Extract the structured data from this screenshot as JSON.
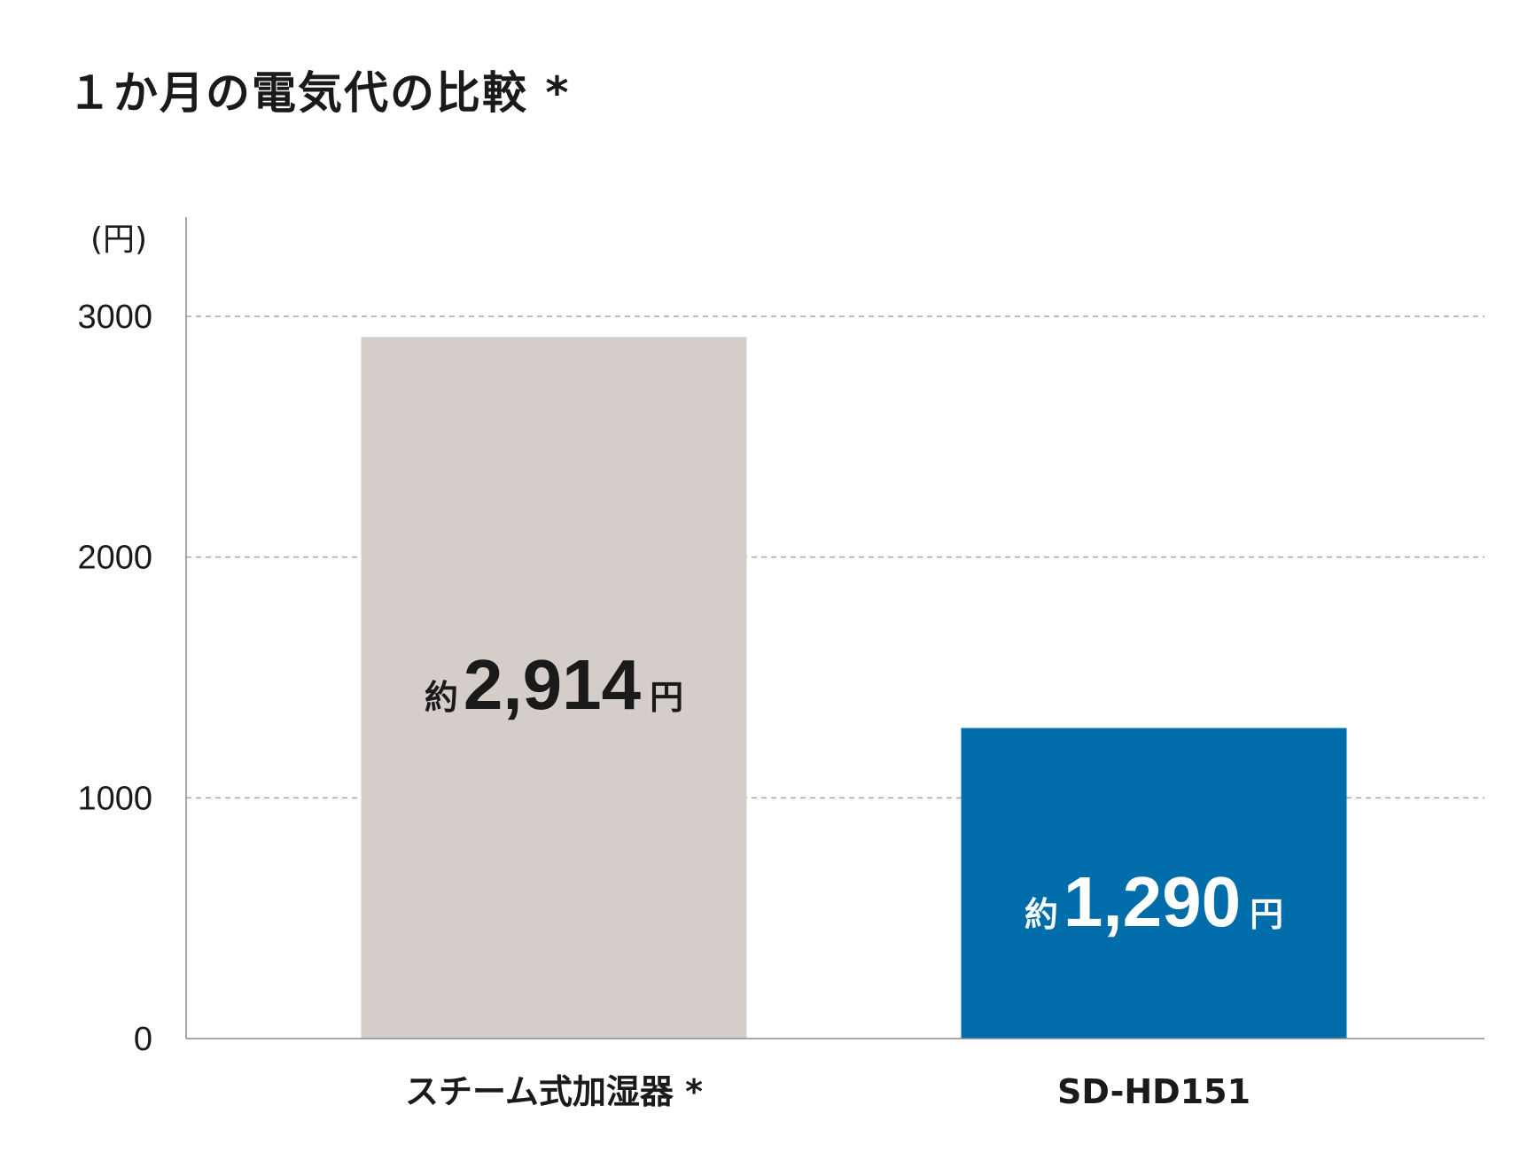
{
  "chart_data": {
    "type": "bar",
    "title": "１か月の電気代の比較 *",
    "ylabel": "(円)",
    "xlabel": "",
    "ylim": [
      0,
      3000
    ],
    "yticks": [
      0,
      1000,
      2000,
      3000
    ],
    "grid": true,
    "categories": [
      "スチーム式加湿器 *",
      "SD-HD151"
    ],
    "values": [
      2914,
      1290
    ],
    "bar_colors": [
      "#d5cdca",
      "#006dab"
    ],
    "data_labels": [
      {
        "prefix": "約",
        "number": "2,914",
        "suffix": "円",
        "color": "#1a1a1a"
      },
      {
        "prefix": "約",
        "number": "1,290",
        "suffix": "円",
        "color": "#ffffff"
      }
    ]
  }
}
